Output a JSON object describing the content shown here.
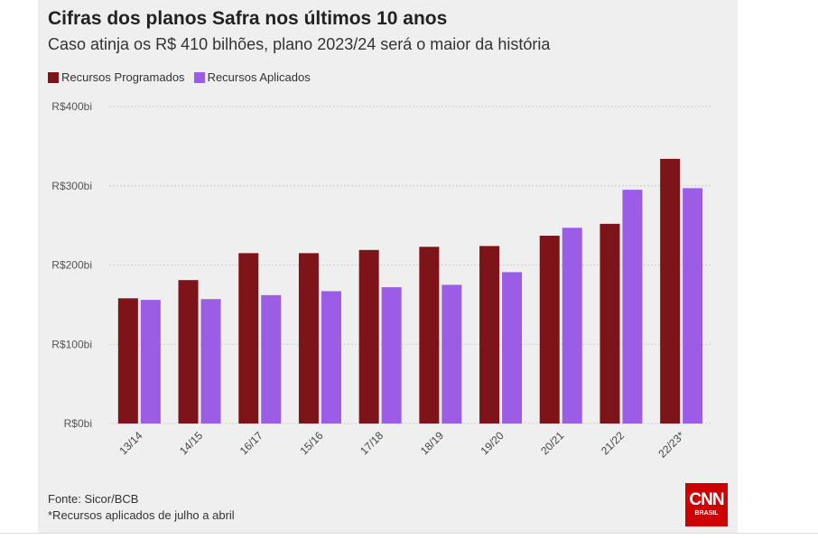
{
  "title": "Cifras dos planos Safra nos últimos 10 anos",
  "subtitle": "Caso atinja os R$ 410 bilhões, plano 2023/24 será o maior da história",
  "colors": {
    "programados": "#7d1419",
    "aplicados": "#9b5de5",
    "gridline": "#cfcfcf",
    "background": "#efefef"
  },
  "legend": {
    "programados_label": "Recursos Programados",
    "aplicados_label": "Recursos Aplicados"
  },
  "footer": {
    "source": "Fonte: Sicor/BCB",
    "note": "*Recursos aplicados de julho a abril"
  },
  "logo": {
    "main": "CNN",
    "sub": "BRASIL"
  },
  "chart_data": {
    "type": "bar",
    "title": "Cifras dos planos Safra nos últimos 10 anos",
    "subtitle": "Caso atinja os R$ 410 bilhões, plano 2023/24 será o maior da história",
    "categories": [
      "13/14",
      "14/15",
      "16/17",
      "15/16",
      "17/18",
      "18/19",
      "19/20",
      "20/21",
      "21/22",
      "22/23*"
    ],
    "series": [
      {
        "name": "Recursos Programados",
        "color": "#7d1419",
        "values": [
          158,
          181,
          215,
          215,
          219,
          223,
          224,
          237,
          252,
          334
        ]
      },
      {
        "name": "Recursos Aplicados",
        "color": "#9b5de5",
        "values": [
          156,
          157,
          162,
          167,
          172,
          175,
          191,
          247,
          295,
          297
        ]
      }
    ],
    "yticks": [
      0,
      100,
      200,
      300,
      400
    ],
    "ytick_labels": [
      "R$0bi",
      "R$100bi",
      "R$200bi",
      "R$300bi",
      "R$400bi"
    ],
    "ylim": [
      0,
      400
    ],
    "xlabel": "",
    "ylabel": "",
    "grid": true,
    "legend_position": "top-left"
  }
}
